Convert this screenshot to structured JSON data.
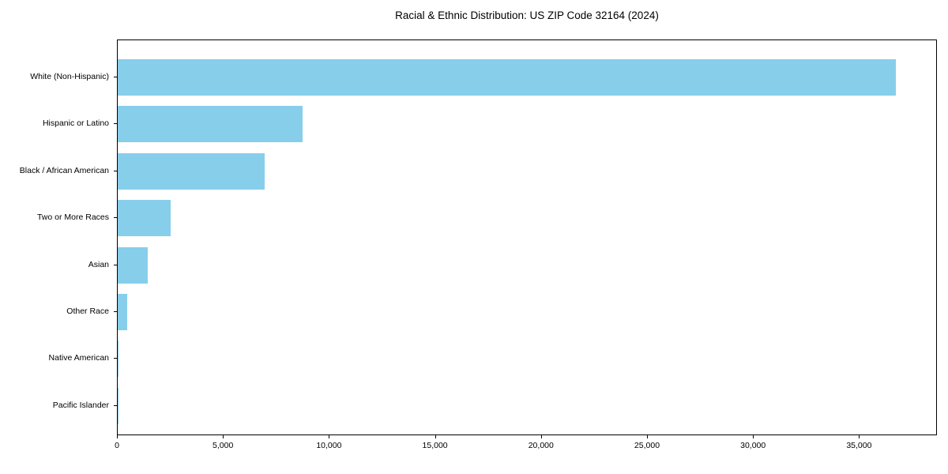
{
  "title": "Racial & Ethnic Distribution: US ZIP Code 32164 (2024)",
  "colors": {
    "bar": "#87CEEB",
    "frame": "#000000",
    "text": "#000000",
    "background": "#ffffff"
  },
  "chart_data": {
    "type": "bar",
    "orientation": "horizontal",
    "title": "Racial & Ethnic Distribution: US ZIP Code 32164 (2024)",
    "xlabel": "",
    "ylabel": "",
    "categories": [
      "White (Non-Hispanic)",
      "Hispanic or Latino",
      "Black / African American",
      "Two or More Races",
      "Asian",
      "Other Race",
      "Native American",
      "Pacific Islander"
    ],
    "values": [
      36700,
      8700,
      6930,
      2490,
      1420,
      460,
      40,
      15
    ],
    "bar_color": "#87CEEB",
    "xlim": [
      0,
      38600
    ],
    "xticks": [
      0,
      5000,
      10000,
      15000,
      20000,
      25000,
      30000,
      35000
    ],
    "xtick_labels": [
      "0",
      "5,000",
      "10,000",
      "15,000",
      "20,000",
      "25,000",
      "30,000",
      "35,000"
    ],
    "grid": false,
    "legend": "none"
  }
}
